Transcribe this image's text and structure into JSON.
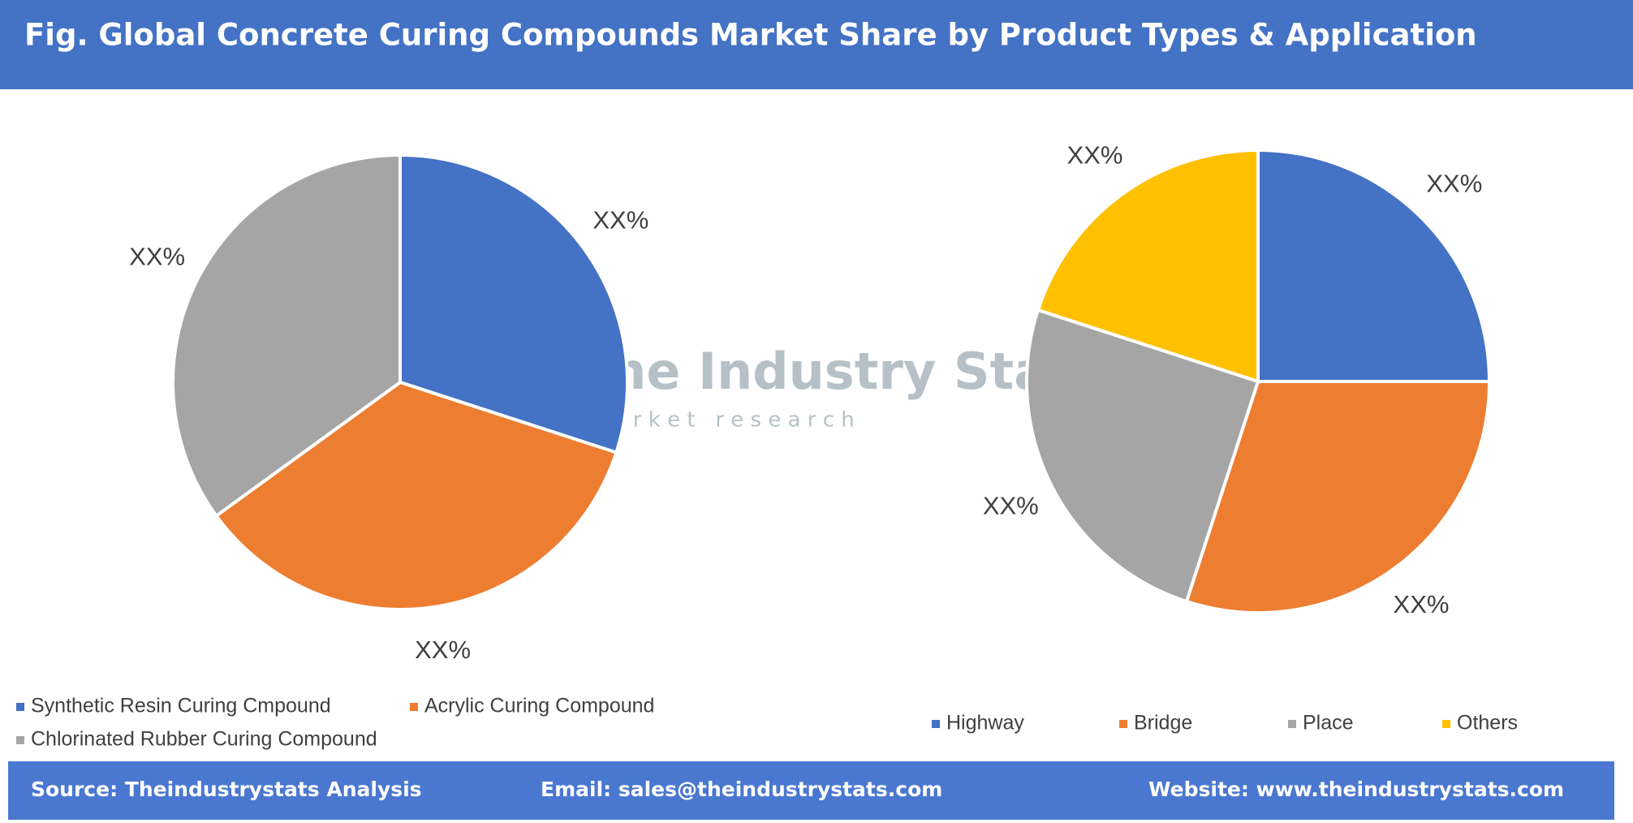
{
  "header": {
    "title": "Fig. Global Concrete Curing Compounds Market Share by Product Types & Application"
  },
  "watermark": {
    "name": "The Industry Stats",
    "tagline": "m a r k e t   r e s e a r c h"
  },
  "chart_data": [
    {
      "type": "pie",
      "categories": [
        "Synthetic Resin Curing Cmpound",
        "Acrylic Curing Compound",
        "Chlorinated Rubber Curing Compound"
      ],
      "values": [
        30,
        35,
        35
      ],
      "value_labels": [
        "XX%",
        "XX%",
        "XX%"
      ],
      "colors": [
        "#4472c4",
        "#ed7d31",
        "#a5a5a5"
      ],
      "legend": "bottom"
    },
    {
      "type": "pie",
      "categories": [
        "Highway",
        "Bridge",
        "Place",
        "Others"
      ],
      "values": [
        25,
        30,
        25,
        20
      ],
      "value_labels": [
        "XX%",
        "XX%",
        "XX%",
        "XX%"
      ],
      "colors": [
        "#4472c4",
        "#ed7d31",
        "#a5a5a5",
        "#ffc000"
      ],
      "legend": "bottom"
    }
  ],
  "footer": {
    "source": "Source: Theindustrystats Analysis",
    "email": "Email: sales@theindustrystats.com",
    "website": "Website: www.theindustrystats.com"
  }
}
